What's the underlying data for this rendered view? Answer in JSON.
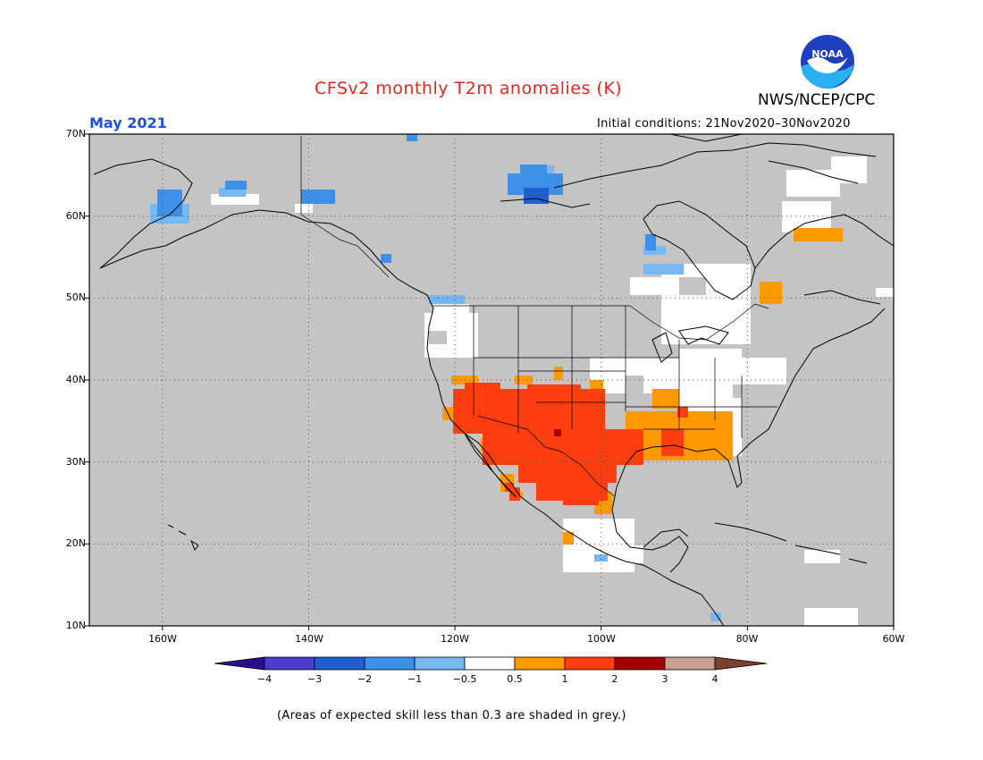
{
  "title": "CFSv2 monthly T2m anomalies (K)",
  "valid_month": "May 2021",
  "agency": "NWS/NCEP/CPC",
  "logo_text": "NOAA",
  "initial_conditions": "Initial conditions: 21Nov2020–30Nov2020",
  "footnote": "(Areas of expected skill less than 0.3 are shaded in grey.)",
  "lat_labels": [
    "70N",
    "60N",
    "50N",
    "40N",
    "30N",
    "20N",
    "10N"
  ],
  "lon_labels": [
    "160W",
    "140W",
    "120W",
    "100W",
    "80W",
    "60W"
  ],
  "colorbar": {
    "ticks": [
      "−4",
      "−3",
      "−2",
      "−1",
      "−0.5",
      "0.5",
      "1",
      "2",
      "3",
      "4"
    ],
    "colors": [
      "#2a0f8c",
      "#4a3ec8",
      "#1f5fd0",
      "#3d8fe8",
      "#78b8f2",
      "#ffffff",
      "#ff9900",
      "#ff3e10",
      "#a00000",
      "#c8a090",
      "#7a4030"
    ]
  },
  "colors": {
    "grey_low_skill": "#c4c4c4",
    "title_red": "#e8231a",
    "month_blue": "#1e50e6"
  }
}
